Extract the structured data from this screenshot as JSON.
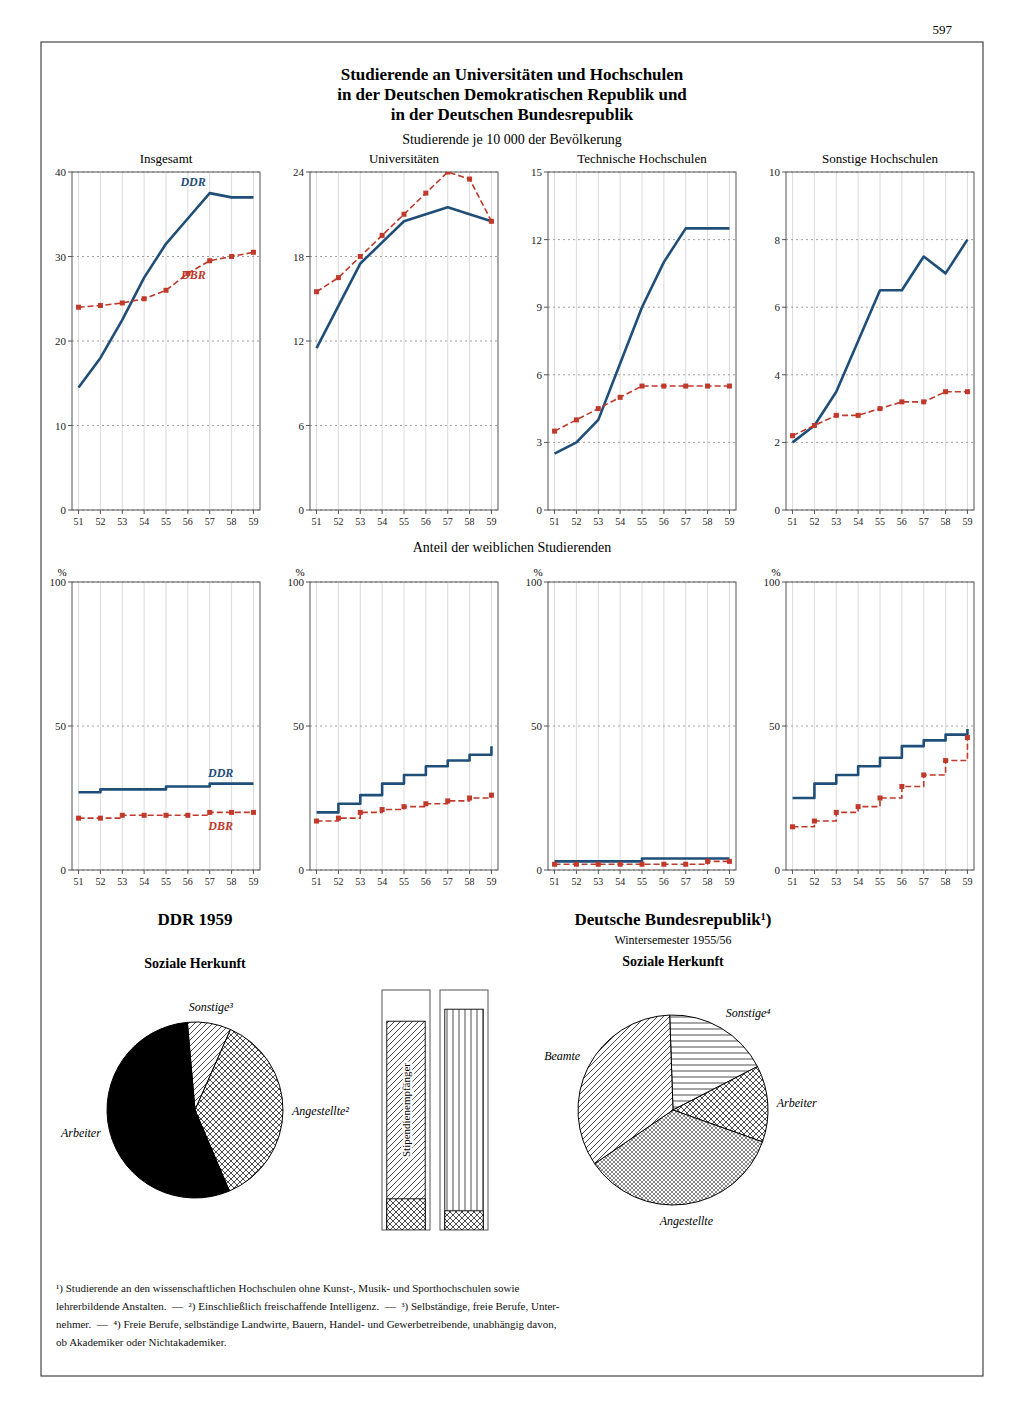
{
  "page_number": "597",
  "title": [
    "Studierende an Universitäten und Hochschulen",
    "in der Deutschen Demokratischen Republik und",
    "in der Deutschen Bundesrepublik"
  ],
  "subtitles": [
    "Studierende je 10 000 der Bevölkerung",
    "Anteil der weiblichen Studierenden"
  ],
  "chart_data": [
    {
      "type": "line",
      "title": "Insgesamt",
      "categories": [
        "51",
        "52",
        "53",
        "54",
        "55",
        "56",
        "57",
        "58",
        "59"
      ],
      "series": [
        {
          "name": "DDR",
          "line_style": "solid",
          "values": [
            14.5,
            18.0,
            22.5,
            27.5,
            31.5,
            34.5,
            37.5,
            37.0,
            37.0
          ]
        },
        {
          "name": "DBR",
          "line_style": "dashed",
          "marker": "square",
          "values": [
            24.0,
            24.2,
            24.5,
            25.0,
            26.0,
            28.0,
            29.5,
            30.0,
            30.5
          ]
        }
      ],
      "ylim": [
        0,
        40
      ],
      "yticks": [
        0,
        10,
        20,
        30,
        40
      ],
      "grid": true
    },
    {
      "type": "line",
      "title": "Universitäten",
      "categories": [
        "51",
        "52",
        "53",
        "54",
        "55",
        "56",
        "57",
        "58",
        "59"
      ],
      "series": [
        {
          "line_style": "solid",
          "values": [
            11.5,
            14.5,
            17.5,
            19.0,
            20.5,
            21.0,
            21.5,
            21.0,
            20.5
          ]
        },
        {
          "line_style": "dashed",
          "marker": "square",
          "values": [
            15.5,
            16.5,
            18.0,
            19.5,
            21.0,
            22.5,
            24.0,
            23.5,
            20.5
          ]
        }
      ],
      "ylim": [
        0,
        24
      ],
      "yticks": [
        0,
        6,
        12,
        18,
        24
      ],
      "grid": true
    },
    {
      "type": "line",
      "title": "Technische Hochschulen",
      "categories": [
        "51",
        "52",
        "53",
        "54",
        "55",
        "56",
        "57",
        "58",
        "59"
      ],
      "series": [
        {
          "line_style": "solid",
          "values": [
            2.5,
            3.0,
            4.0,
            6.5,
            9.0,
            11.0,
            12.5,
            12.5,
            12.5
          ]
        },
        {
          "line_style": "dashed",
          "marker": "square",
          "values": [
            3.5,
            4.0,
            4.5,
            5.0,
            5.5,
            5.5,
            5.5,
            5.5,
            5.5
          ]
        }
      ],
      "ylim": [
        0,
        15
      ],
      "yticks": [
        0,
        3,
        6,
        9,
        12,
        15
      ],
      "grid": true
    },
    {
      "type": "line",
      "title": "Sonstige Hochschulen",
      "categories": [
        "51",
        "52",
        "53",
        "54",
        "55",
        "56",
        "57",
        "58",
        "59"
      ],
      "series": [
        {
          "line_style": "solid",
          "values": [
            2.0,
            2.5,
            3.5,
            5.0,
            6.5,
            6.5,
            7.5,
            7.0,
            8.0
          ]
        },
        {
          "line_style": "dashed",
          "marker": "square",
          "values": [
            2.2,
            2.5,
            2.8,
            2.8,
            3.0,
            3.2,
            3.2,
            3.5,
            3.5
          ]
        }
      ],
      "ylim": [
        0,
        10
      ],
      "yticks": [
        0,
        2,
        4,
        6,
        8,
        10
      ],
      "grid": true
    },
    {
      "type": "step",
      "y_label": "%",
      "categories": [
        "51",
        "52",
        "53",
        "54",
        "55",
        "56",
        "57",
        "58",
        "59"
      ],
      "series": [
        {
          "name": "DDR",
          "line_style": "solid",
          "values": [
            27,
            28,
            28,
            28,
            29,
            29,
            30,
            30,
            30
          ]
        },
        {
          "name": "DBR",
          "line_style": "dashed",
          "marker": "square",
          "values": [
            18,
            18,
            19,
            19,
            19,
            19,
            20,
            20,
            20
          ]
        }
      ],
      "ylim": [
        0,
        100
      ],
      "yticks": [
        0,
        50,
        100
      ],
      "grid": true
    },
    {
      "type": "step",
      "y_label": "%",
      "categories": [
        "51",
        "52",
        "53",
        "54",
        "55",
        "56",
        "57",
        "58",
        "59"
      ],
      "series": [
        {
          "line_style": "solid",
          "values": [
            20,
            23,
            26,
            30,
            33,
            36,
            38,
            40,
            43
          ]
        },
        {
          "line_style": "dashed",
          "marker": "square",
          "values": [
            17,
            18,
            20,
            21,
            22,
            23,
            24,
            25,
            26
          ]
        }
      ],
      "ylim": [
        0,
        100
      ],
      "yticks": [
        0,
        50,
        100
      ],
      "grid": true
    },
    {
      "type": "step",
      "y_label": "%",
      "categories": [
        "51",
        "52",
        "53",
        "54",
        "55",
        "56",
        "57",
        "58",
        "59"
      ],
      "series": [
        {
          "line_style": "solid",
          "values": [
            3,
            3,
            3,
            3,
            4,
            4,
            4,
            4,
            4
          ]
        },
        {
          "line_style": "dashed",
          "marker": "square",
          "values": [
            2,
            2,
            2,
            2,
            2,
            2,
            2,
            3,
            3
          ]
        }
      ],
      "ylim": [
        0,
        100
      ],
      "yticks": [
        0,
        50,
        100
      ],
      "grid": true
    },
    {
      "type": "step",
      "y_label": "%",
      "categories": [
        "51",
        "52",
        "53",
        "54",
        "55",
        "56",
        "57",
        "58",
        "59"
      ],
      "series": [
        {
          "line_style": "solid",
          "values": [
            25,
            30,
            33,
            36,
            39,
            43,
            45,
            47,
            49
          ]
        },
        {
          "line_style": "dashed",
          "marker": "square",
          "values": [
            15,
            17,
            20,
            22,
            25,
            29,
            33,
            38,
            46
          ]
        }
      ],
      "ylim": [
        0,
        100
      ],
      "yticks": [
        0,
        50,
        100
      ],
      "grid": true
    },
    {
      "type": "pie",
      "title": "DDR 1959",
      "annotations": [
        "Soziale Herkunft"
      ],
      "categories": [
        "Sonstige³",
        "Angestellte²",
        "Arbeiter"
      ],
      "values": [
        8,
        37,
        55
      ],
      "colors": [
        "white",
        "white",
        "black"
      ]
    },
    {
      "type": "bar",
      "annotations": [
        "Stipendienempfänger"
      ],
      "categories": [
        null,
        null
      ],
      "series": [
        {
          "values": [
            0.87,
            0.92
          ]
        },
        {
          "values": [
            0.13,
            0.08
          ]
        }
      ],
      "ylim": [
        0,
        1
      ],
      "stacked": false,
      "tick_labels": false
    },
    {
      "type": "pie",
      "title": "Deutsche Bundesrepublik¹)",
      "subtitle": "Wintersemester 1955/56",
      "annotations": [
        "Soziale Herkunft"
      ],
      "categories": [
        "Sonstige⁴",
        "Arbeiter",
        "Angestellte",
        "Beamte"
      ],
      "values": [
        18,
        13,
        35,
        34
      ],
      "colors": [
        "white",
        "white",
        "white",
        "white"
      ]
    }
  ],
  "footnotes": [
    "¹) Studierende an den wissenschaftlichen Hochschulen ohne Kunst-, Musik- und Sporthochschulen sowie",
    "lehrerbildende Anstalten.  —  ²) Einschließlich freischaffende Intelligenz.  —  ³) Selbständige, freie Berufe, Unter-",
    "nehmer.  —  ⁴) Freie Berufe, selbständige Landwirte, Bauern, Handel- und Gewerbetreibende, unabhängig davon,",
    "ob Akademiker oder Nichtakademiker."
  ]
}
